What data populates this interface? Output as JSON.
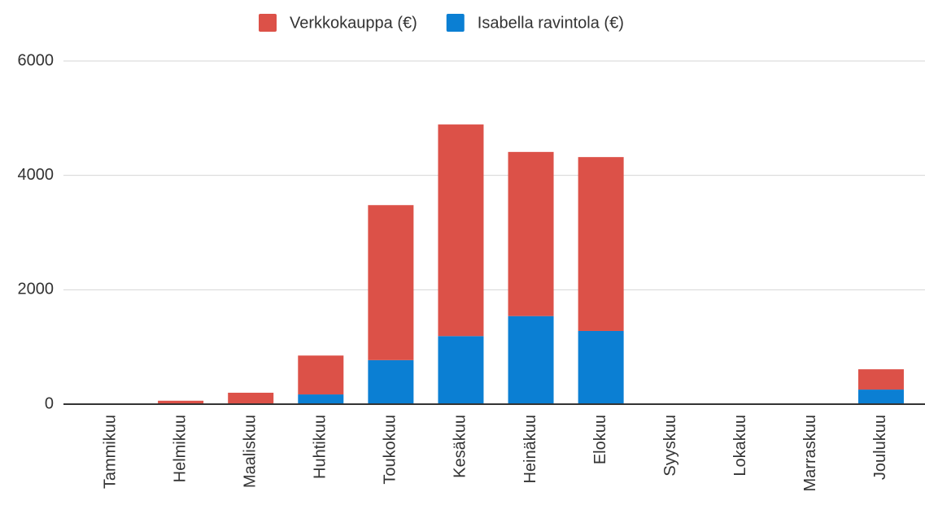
{
  "chart_data": {
    "type": "stacked_bar",
    "categories": [
      "Tammikuu",
      "Helmikuu",
      "Maaliskuu",
      "Huhtikuu",
      "Toukokuu",
      "Kesäkuu",
      "Heinäkuu",
      "Elokuu",
      "Syyskuu",
      "Lokakuu",
      "Marraskuu",
      "Joulukuu"
    ],
    "series": [
      {
        "name": "Verkkokauppa (€)",
        "color": "#dc5148",
        "values": [
          0,
          60,
          200,
          680,
          2710,
          3700,
          2870,
          3040,
          0,
          0,
          0,
          355
        ]
      },
      {
        "name": "Isabella ravintola (€)",
        "color": "#0b7fd3",
        "values": [
          0,
          0,
          0,
          170,
          770,
          1190,
          1540,
          1280,
          0,
          0,
          0,
          255
        ]
      }
    ],
    "ylim": [
      0,
      6000
    ],
    "yticks": [
      0,
      2000,
      4000,
      6000
    ],
    "grid": true,
    "legend": "top"
  }
}
